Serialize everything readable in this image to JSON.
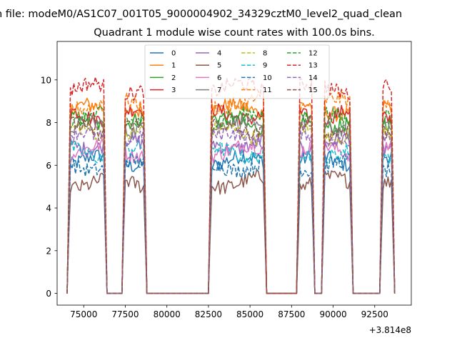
{
  "suptitle": "n file: modeM0/AS1C07_001T05_9000004902_34329cztM0_level2_quad_clean",
  "chart_data": {
    "type": "line",
    "title": "Quadrant 1 module wise count rates with 100.0s bins.",
    "xlabel": "",
    "ylabel": "",
    "x_offset_label": "+3.814e8",
    "xlim": [
      73400,
      94700
    ],
    "ylim": [
      -0.55,
      11.8
    ],
    "x_ticks": [
      75000,
      77500,
      80000,
      82500,
      85000,
      87500,
      90000,
      92500
    ],
    "x_tick_labels": [
      "75000",
      "77500",
      "80000",
      "82500",
      "85000",
      "87500",
      "90000",
      "92500"
    ],
    "y_ticks": [
      0,
      2,
      4,
      6,
      8,
      10
    ],
    "y_tick_labels": [
      "0",
      "2",
      "4",
      "6",
      "8",
      "10"
    ],
    "bin_size_s": 100,
    "legend_location": "upper center",
    "legend_columns": 4,
    "orbit_segments": [
      {
        "start": 74000,
        "end": 76400
      },
      {
        "start": 77300,
        "end": 78800
      },
      {
        "start": 82500,
        "end": 86000
      },
      {
        "start": 87800,
        "end": 88900
      },
      {
        "start": 89300,
        "end": 91200
      },
      {
        "start": 92800,
        "end": 93700
      }
    ],
    "series": [
      {
        "name": "0",
        "color": "#1f77b4",
        "dash": "solid",
        "level": 6.2
      },
      {
        "name": "1",
        "color": "#ff7f0e",
        "dash": "solid",
        "level": 8.6
      },
      {
        "name": "2",
        "color": "#2ca02c",
        "dash": "solid",
        "level": 8.0
      },
      {
        "name": "3",
        "color": "#d62728",
        "dash": "solid",
        "level": 8.4
      },
      {
        "name": "4",
        "color": "#9467bd",
        "dash": "solid",
        "level": 7.0
      },
      {
        "name": "5",
        "color": "#8c564b",
        "dash": "solid",
        "level": 5.2
      },
      {
        "name": "6",
        "color": "#e377c2",
        "dash": "solid",
        "level": 6.7
      },
      {
        "name": "7",
        "color": "#7f7f7f",
        "dash": "solid",
        "level": 7.8
      },
      {
        "name": "8",
        "color": "#bcbd22",
        "dash": "dashed",
        "level": 7.5
      },
      {
        "name": "9",
        "color": "#17becf",
        "dash": "dashed",
        "level": 6.6
      },
      {
        "name": "10",
        "color": "#1f77b4",
        "dash": "dashed",
        "level": 6.0
      },
      {
        "name": "11",
        "color": "#ff7f0e",
        "dash": "dashed",
        "level": 8.9
      },
      {
        "name": "12",
        "color": "#2ca02c",
        "dash": "dashed",
        "level": 8.2
      },
      {
        "name": "13",
        "color": "#d62728",
        "dash": "dashed",
        "level": 9.6
      },
      {
        "name": "14",
        "color": "#9467bd",
        "dash": "dashed",
        "level": 7.3
      },
      {
        "name": "15",
        "color": "#8c564b",
        "dash": "dashed",
        "level": 7.7
      }
    ]
  }
}
